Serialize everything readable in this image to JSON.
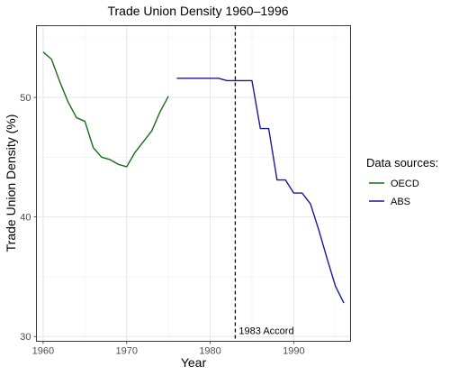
{
  "chart_data": {
    "type": "line",
    "title": "Trade Union Density 1960–1996",
    "xlabel": "Year",
    "ylabel": "Trade Union Density (%)",
    "xlim": [
      1959.2,
      1996.8
    ],
    "ylim": [
      29.6,
      56.0
    ],
    "x_ticks": [
      1960,
      1970,
      1980,
      1990
    ],
    "y_ticks": [
      30,
      40,
      50
    ],
    "grid": true,
    "legend": {
      "title": "Data sources:",
      "position": "right"
    },
    "series": [
      {
        "name": "OECD",
        "color": "#1a6b1a",
        "x": [
          1960,
          1961,
          1962,
          1963,
          1964,
          1965,
          1966,
          1967,
          1968,
          1969,
          1970,
          1971,
          1972,
          1973,
          1974,
          1975
        ],
        "y": [
          53.8,
          53.2,
          51.3,
          49.6,
          48.3,
          48.0,
          45.8,
          45.0,
          44.8,
          44.4,
          44.2,
          45.4,
          46.3,
          47.2,
          48.8,
          50.1
        ]
      },
      {
        "name": "ABS",
        "color": "#1a1a8c",
        "x": [
          1976,
          1977,
          1978,
          1979,
          1980,
          1981,
          1982,
          1983,
          1984,
          1985,
          1986,
          1987,
          1988,
          1989,
          1990,
          1991,
          1992,
          1993,
          1994,
          1995,
          1996
        ],
        "y": [
          51.6,
          51.6,
          51.6,
          51.6,
          51.6,
          51.6,
          51.4,
          51.4,
          51.4,
          51.4,
          47.4,
          47.4,
          43.1,
          43.1,
          42.0,
          42.0,
          41.1,
          38.9,
          36.5,
          34.2,
          32.8
        ]
      }
    ],
    "annotations": [
      {
        "type": "vline",
        "x": 1983,
        "style": "dashed",
        "label": "1983 Accord"
      }
    ]
  }
}
